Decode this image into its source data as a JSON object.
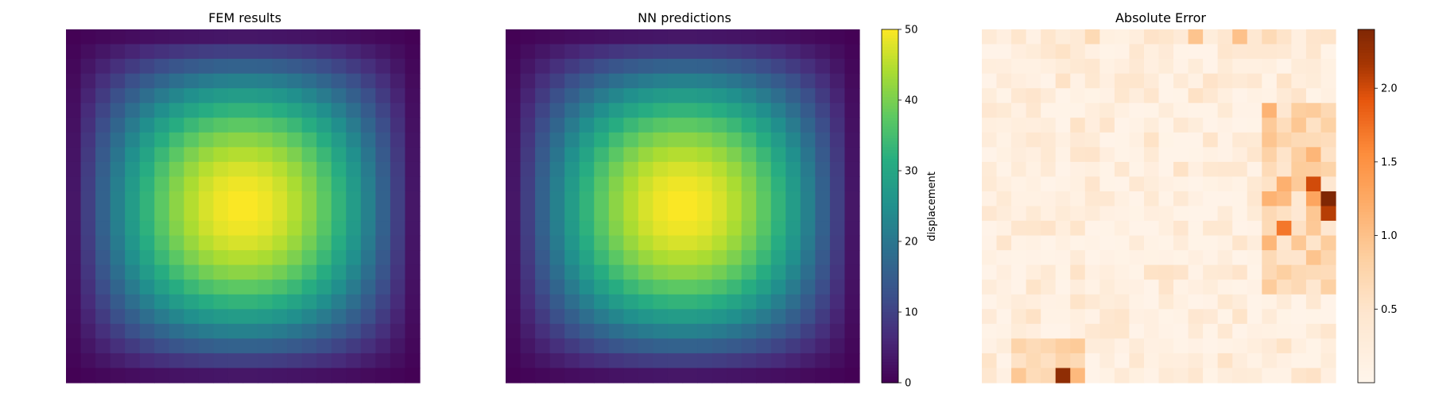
{
  "chart_data": [
    {
      "type": "heatmap",
      "title": "FEM results",
      "grid_size": [
        24,
        24
      ],
      "field": "smooth bump peaking at the center",
      "center_value": 50,
      "corner_value": 0,
      "colormap": "viridis",
      "vmin": 0,
      "vmax": 50,
      "axes_visible": false
    },
    {
      "type": "heatmap",
      "title": "NN predictions",
      "grid_size": [
        24,
        24
      ],
      "field": "smooth bump peaking at the center",
      "center_value": 50,
      "corner_value": 0,
      "colormap": "viridis",
      "vmin": 0,
      "vmax": 50,
      "axes_visible": false,
      "colorbar": {
        "label": "displacement",
        "ticks": [
          "0",
          "10",
          "20",
          "30",
          "40",
          "50"
        ],
        "range": [
          0,
          50
        ]
      }
    },
    {
      "type": "heatmap",
      "title": "Absolute Error",
      "grid_size": [
        24,
        24
      ],
      "colormap": "oranges",
      "vmin": 0,
      "vmax": 2.4,
      "axes_visible": false,
      "colorbar": {
        "label": "",
        "ticks": [
          "0.5",
          "1.0",
          "1.5",
          "2.0"
        ],
        "range": [
          0,
          2.4
        ]
      },
      "hotspots": [
        {
          "row": 11,
          "col": 23,
          "value": 2.4
        },
        {
          "row": 12,
          "col": 23,
          "value": 2.1
        },
        {
          "row": 23,
          "col": 5,
          "value": 2.3
        },
        {
          "row": 10,
          "col": 22,
          "value": 2.0
        },
        {
          "row": 13,
          "col": 20,
          "value": 1.7
        }
      ]
    }
  ]
}
